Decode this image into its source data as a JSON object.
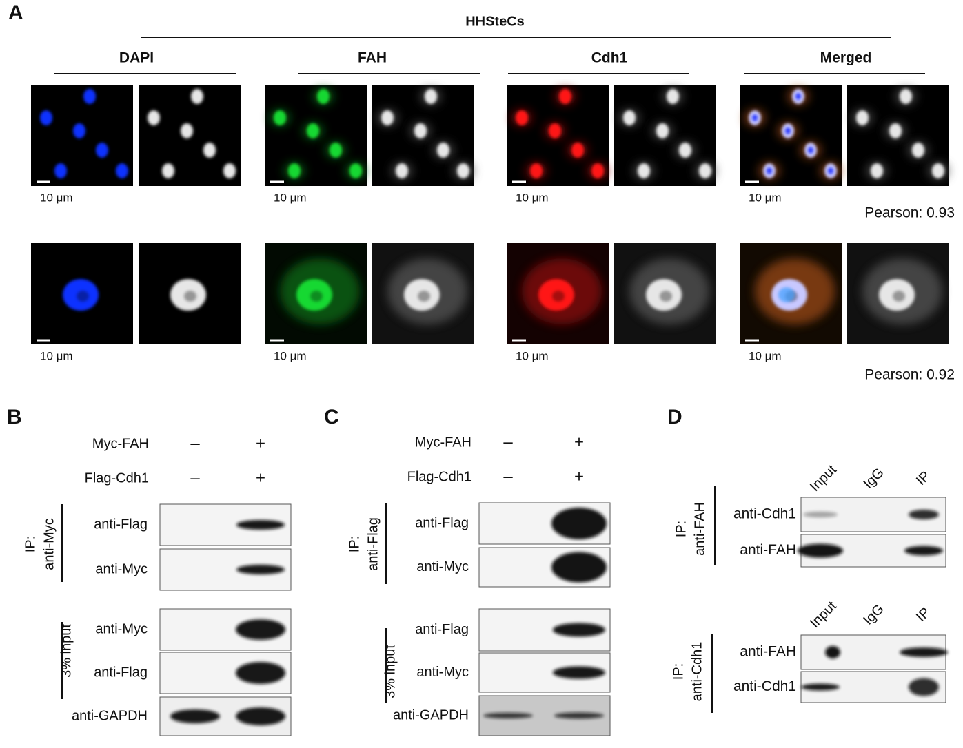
{
  "panel_a": {
    "label": "A",
    "title": "HHSteCs",
    "channels": [
      {
        "name": "DAPI",
        "color": "#1a6fd6"
      },
      {
        "name": "FAH",
        "color": "#22b14c"
      },
      {
        "name": "Cdh1",
        "color": "#e8141b"
      },
      {
        "name": "Merged",
        "color": "#8e3fae"
      }
    ],
    "rows": [
      {
        "scale_labels": [
          "10 μm",
          "10 μm",
          "10 μm",
          "10 μm"
        ],
        "pearson": "Pearson: 0.93"
      },
      {
        "scale_labels": [
          "10 μm",
          "10 μm",
          "10 μm",
          "10 μm"
        ],
        "pearson": "Pearson: 0.92"
      }
    ]
  },
  "panel_b": {
    "label": "B",
    "conditions": [
      {
        "name": "Myc-FAH",
        "lanes": [
          "–",
          "+"
        ]
      },
      {
        "name": "Flag-Cdh1",
        "lanes": [
          "–",
          "+"
        ]
      }
    ],
    "groups": [
      {
        "lines": [
          "IP:",
          "anti-Myc"
        ],
        "blots": [
          "anti-Flag",
          "anti-Myc"
        ]
      },
      {
        "lines": [
          "3% input"
        ],
        "blots": [
          "anti-Myc",
          "anti-Flag"
        ]
      }
    ],
    "loading": "anti-GAPDH"
  },
  "panel_c": {
    "label": "C",
    "conditions": [
      {
        "name": "Myc-FAH",
        "lanes": [
          "–",
          "+"
        ]
      },
      {
        "name": "Flag-Cdh1",
        "lanes": [
          "–",
          "+"
        ]
      }
    ],
    "groups": [
      {
        "lines": [
          "IP:",
          "anti-Flag"
        ],
        "blots": [
          "anti-Flag",
          "anti-Myc"
        ]
      },
      {
        "lines": [
          "3% input"
        ],
        "blots": [
          "anti-Flag",
          "anti-Myc"
        ]
      }
    ],
    "loading": "anti-GAPDH"
  },
  "panel_d": {
    "label": "D",
    "sections": [
      {
        "lanes": [
          "Input",
          "IgG",
          "IP"
        ],
        "group": [
          "IP:",
          "anti-FAH"
        ],
        "blots": [
          "anti-Cdh1",
          "anti-FAH"
        ]
      },
      {
        "lanes": [
          "Input",
          "IgG",
          "IP"
        ],
        "group": [
          "IP:",
          "anti-Cdh1"
        ],
        "blots": [
          "anti-FAH",
          "anti-Cdh1"
        ]
      }
    ]
  }
}
